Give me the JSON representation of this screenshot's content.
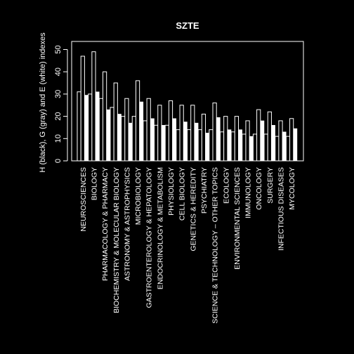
{
  "chart_data": {
    "type": "bar",
    "title": "SZTE",
    "xlabel": "",
    "ylabel": "H (black), G (gray) and E (white) indexes",
    "ylim": [
      0,
      52
    ],
    "yticks": [
      0,
      10,
      20,
      30,
      40,
      50
    ],
    "grid": false,
    "legend": "none",
    "colors": {
      "background": "#000000",
      "foreground": "#ffffff",
      "H": "#000000",
      "G": "#000000",
      "E": "#ffffff"
    },
    "categories": [
      "NEUROSCIENCES",
      "BIOLOGY",
      "PHARMACOLOGY & PHARMACY",
      "BIOCHEMISTRY & MOLECULAR BIOLOGY",
      "ASTRONOMY & ASTROPHYSICS",
      "MICROBIOLOGY",
      "GASTROENTEROLOGY & HEPATOLOGY",
      "ENDOCRINOLOGY & METABOLISM",
      "PHYSIOLOGY",
      "CELL BIOLOGY",
      "GENETICS & HEREDITY",
      "PSYCHIATRY",
      "SCIENCE & TECHNOLOGY – OTHER TOPICS",
      "ECOLOGY",
      "ENVIRONMENTAL SCIENCES",
      "IMMUNOLOGY",
      "ONCOLOGY",
      "SURGERY",
      "INFECTIOUS DISEASES",
      "MYCOLOGY"
    ],
    "series": [
      {
        "name": "H",
        "values": [
          31,
          30,
          28,
          24,
          20,
          20,
          18,
          16,
          16,
          14,
          14,
          14,
          14,
          13,
          13,
          12,
          12,
          12,
          11,
          11
        ]
      },
      {
        "name": "G",
        "values": [
          47,
          49,
          40,
          35,
          28,
          36,
          28,
          25,
          27,
          25,
          25,
          21,
          26,
          20,
          20,
          18,
          23,
          22,
          18,
          19
        ]
      },
      {
        "name": "E",
        "values": [
          29.5,
          31,
          23,
          21,
          17,
          26.5,
          19,
          16,
          19,
          17.5,
          17,
          12.5,
          19.5,
          14,
          14,
          11,
          18,
          16,
          13,
          14.5
        ]
      }
    ]
  }
}
